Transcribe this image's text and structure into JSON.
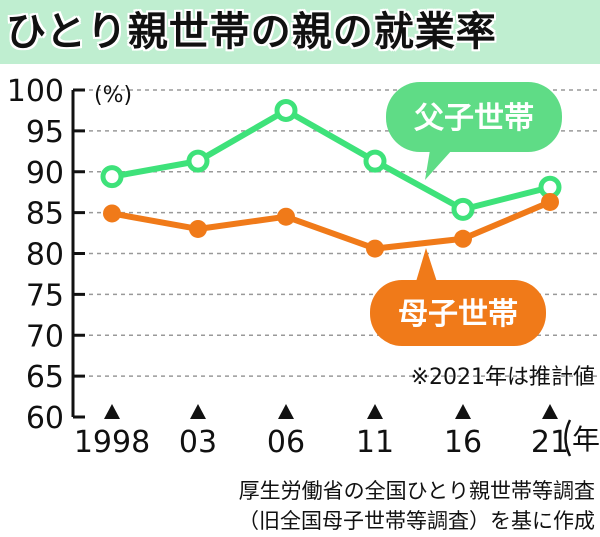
{
  "chart_data": {
    "type": "line",
    "title": "ひとり親世帯の親の就業率",
    "x": [
      "1998",
      "03",
      "06",
      "11",
      "16",
      "21"
    ],
    "ylabel": "(%)",
    "ylim": [
      60,
      100
    ],
    "yticks": [
      60,
      65,
      70,
      75,
      80,
      85,
      90,
      95,
      100
    ],
    "x_unit": "年",
    "grid": true,
    "series": [
      {
        "name": "父子世帯",
        "values": [
          89.4,
          91.3,
          97.5,
          91.3,
          85.4,
          88.1
        ],
        "color": "#3ee27a",
        "label_color": "#5fdc86"
      },
      {
        "name": "母子世帯",
        "values": [
          84.9,
          83.0,
          84.5,
          80.6,
          81.8,
          86.3
        ],
        "color": "#f07a19",
        "label_color": "#f07a19"
      }
    ],
    "note": "※2021年は推計値",
    "source_lines": [
      "厚生労働省の全国ひとり親世帯等調査",
      "（旧全国母子世帯等調査）を基に作成"
    ]
  },
  "colors": {
    "title_band": "#bfeed0",
    "axis": "#111111",
    "grid": "#999999"
  }
}
